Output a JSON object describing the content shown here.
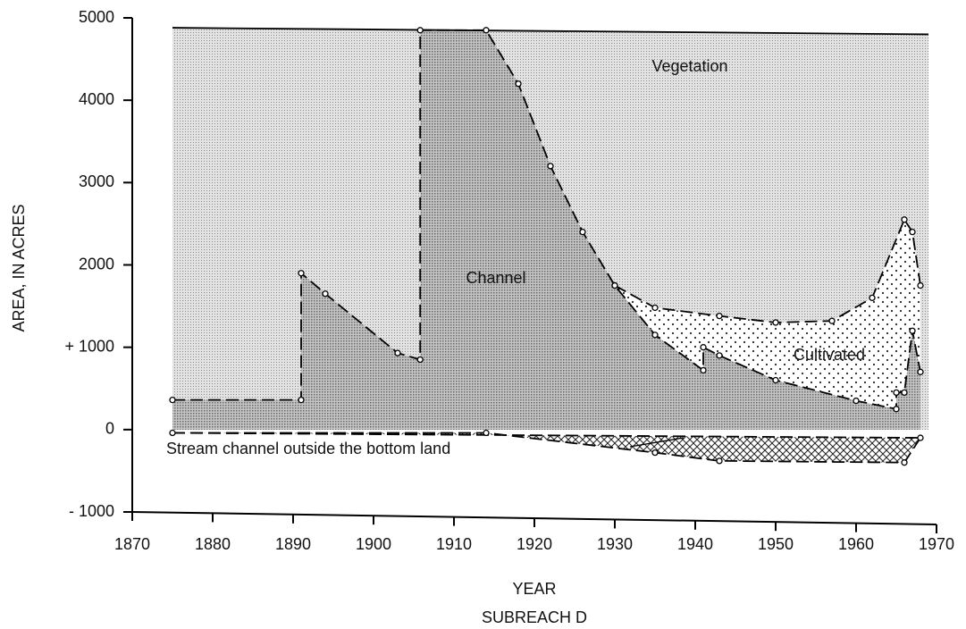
{
  "chart_data": {
    "type": "area",
    "xlabel": "YEAR",
    "ylabel": "AREA, IN ACRES",
    "subtitle": "SUBREACH D",
    "xlim": [
      1870,
      1970
    ],
    "xticks": [
      1870,
      1880,
      1890,
      1900,
      1910,
      1920,
      1930,
      1940,
      1950,
      1960,
      1970
    ],
    "ylim": [
      -1000,
      5000
    ],
    "yticks": [
      {
        "value": -1000,
        "label": "- 1000"
      },
      0,
      {
        "value": 1000,
        "label": "+ 1000"
      },
      2000,
      3000,
      4000,
      5000
    ],
    "series": [
      {
        "name": "Vegetation",
        "fill": "stipple",
        "color": "#cfcfcf",
        "line": "solid",
        "x": [
          1875,
          1969
        ],
        "values": [
          4880,
          4800
        ]
      },
      {
        "name": "Cultivated",
        "fill": "dots",
        "color": "#ffffff",
        "line": "dashed",
        "x": [
          1930,
          1935,
          1943,
          1950,
          1957,
          1962,
          1966,
          1967,
          1968
        ],
        "values": [
          1750,
          1480,
          1380,
          1300,
          1320,
          1600,
          2550,
          2400,
          1750
        ]
      },
      {
        "name": "Channel",
        "fill": "stipple",
        "color": "#b3b3b3",
        "line": "dashed",
        "x": [
          1875,
          1891,
          1891,
          1894,
          1903,
          1905.8,
          1905.8,
          1914,
          1918,
          1922,
          1926,
          1930,
          1935,
          1941,
          1941,
          1943,
          1950,
          1960,
          1965,
          1965,
          1966,
          1967,
          1968
        ],
        "values": [
          360,
          360,
          1900,
          1650,
          930,
          850,
          4850,
          4850,
          4200,
          3200,
          2400,
          1750,
          1150,
          720,
          1000,
          900,
          600,
          350,
          250,
          450,
          450,
          1200,
          700
        ]
      },
      {
        "name": "Stream channel outside the bottom land",
        "fill": "hatch",
        "color": "#ffffff",
        "line": "dashed",
        "x": [
          1875,
          1914,
          1935,
          1943,
          1966,
          1968
        ],
        "values": [
          -40,
          -40,
          -280,
          -380,
          -400,
          -100
        ]
      }
    ]
  }
}
